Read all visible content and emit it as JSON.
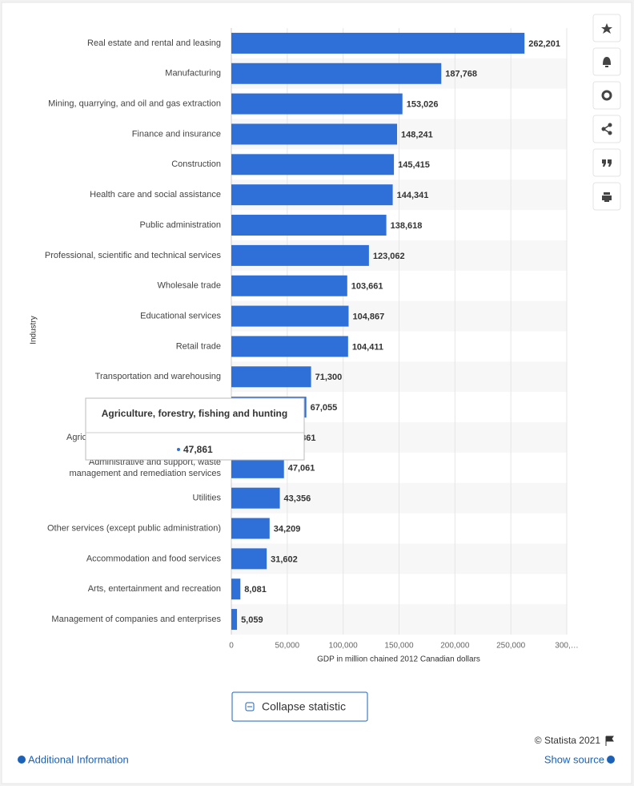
{
  "chart_data": {
    "type": "bar",
    "orientation": "horizontal",
    "categories": [
      "Real estate and rental and leasing",
      "Manufacturing",
      "Mining, quarrying, and oil and gas extraction",
      "Finance and insurance",
      "Construction",
      "Health care and social assistance",
      "Public administration",
      "Professional, scientific and technical services",
      "Wholesale trade",
      "Educational services",
      "Retail trade",
      "Transportation and warehousing",
      null,
      "Agriculture, forestry, fishing and hunting",
      "Administrative and support, waste management and remediation services",
      "Utilities",
      "Other services (except public administration)",
      "Accommodation and food services",
      "Arts, entertainment and recreation",
      "Management of companies and enterprises"
    ],
    "values": [
      262201,
      187768,
      153026,
      148241,
      145415,
      144341,
      138618,
      123062,
      103661,
      104867,
      104411,
      71300,
      67055,
      47861,
      47061,
      43356,
      34209,
      31602,
      8081,
      5059
    ],
    "value_labels": [
      "262,201",
      "187,768",
      "153,026",
      "148,241",
      "145,415",
      "144,341",
      "138,618",
      "123,062",
      "103,661",
      "104,867",
      "104,411",
      "71,300",
      "67,055",
      "47,861",
      "47,061",
      "43,356",
      "34,209",
      "31,602",
      "8,081",
      "5,059"
    ],
    "color": "#2f6fd8",
    "xlim": [
      0,
      300000
    ],
    "xticks": [
      0,
      {
        "value": 50000,
        "label": "50,000"
      },
      {
        "value": 100000,
        "label": "100,000"
      },
      {
        "value": 150000,
        "label": "150,000"
      },
      {
        "value": 200000,
        "label": "200,000"
      },
      {
        "value": 250000,
        "label": "250,000"
      },
      {
        "value": 300000,
        "label": "300,…"
      }
    ],
    "x_label": "GDP in million chained 2012 Canadian dollars",
    "y_label": "Industry",
    "grid": true,
    "tooltip_index": 13
  },
  "ui": {
    "collapse": "Collapse statistic",
    "copyright": "© Statista 2021",
    "additional_info": "Additional Information",
    "show_source": "Show source"
  }
}
